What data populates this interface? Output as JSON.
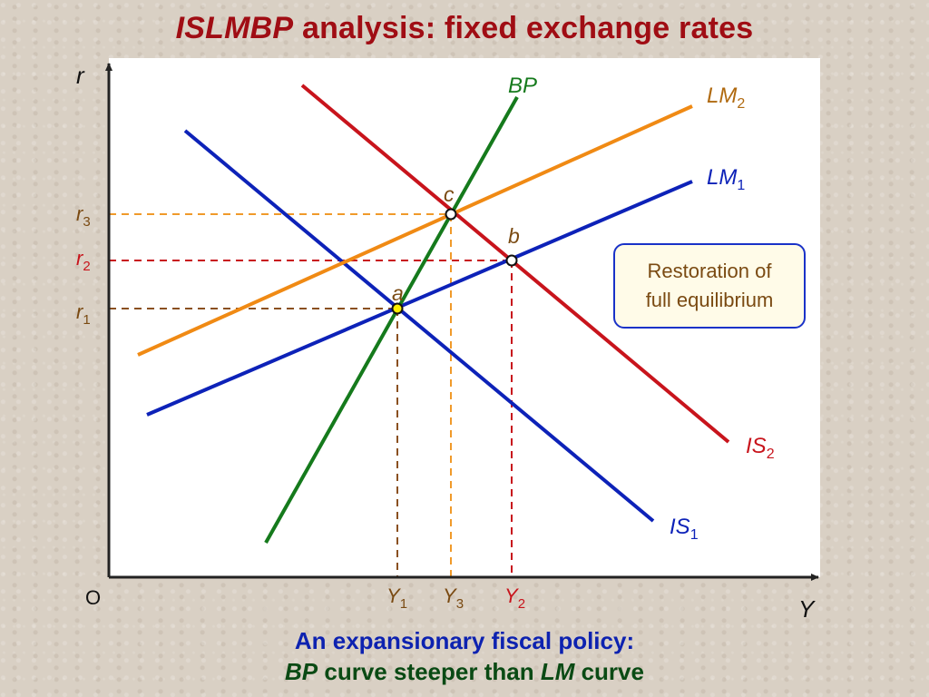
{
  "title": {
    "italic": "ISLMBP",
    "rest": " analysis: fixed exchange rates"
  },
  "axes": {
    "y_label": "r",
    "x_label": "Y",
    "origin_label": "O"
  },
  "curves": {
    "bp": {
      "label": "BP",
      "color": "#157a1c"
    },
    "lm2": {
      "label": "LM",
      "sub": "2",
      "color": "#f08a14"
    },
    "lm1": {
      "label": "LM",
      "sub": "1",
      "color": "#0d22b8"
    },
    "is2": {
      "label": "IS",
      "sub": "2",
      "color": "#c8141c"
    },
    "is1": {
      "label": "IS",
      "sub": "1",
      "color": "#0d22b8"
    }
  },
  "points": {
    "a": "a",
    "b": "b",
    "c": "c"
  },
  "r_ticks": {
    "r1": {
      "label": "r",
      "sub": "1"
    },
    "r2": {
      "label": "r",
      "sub": "2"
    },
    "r3": {
      "label": "r",
      "sub": "3"
    }
  },
  "y_ticks": {
    "y1": {
      "label": "Y",
      "sub": "1"
    },
    "y3": {
      "label": "Y",
      "sub": "3"
    },
    "y2": {
      "label": "Y",
      "sub": "2"
    }
  },
  "box": {
    "line1": "Restoration of",
    "line2": "full equilibrium"
  },
  "caption": {
    "line1": "An expansionary fiscal policy:",
    "line2_bp": "BP",
    "line2_mid": " curve steeper than ",
    "line2_lm": "LM",
    "line2_end": " curve"
  }
}
